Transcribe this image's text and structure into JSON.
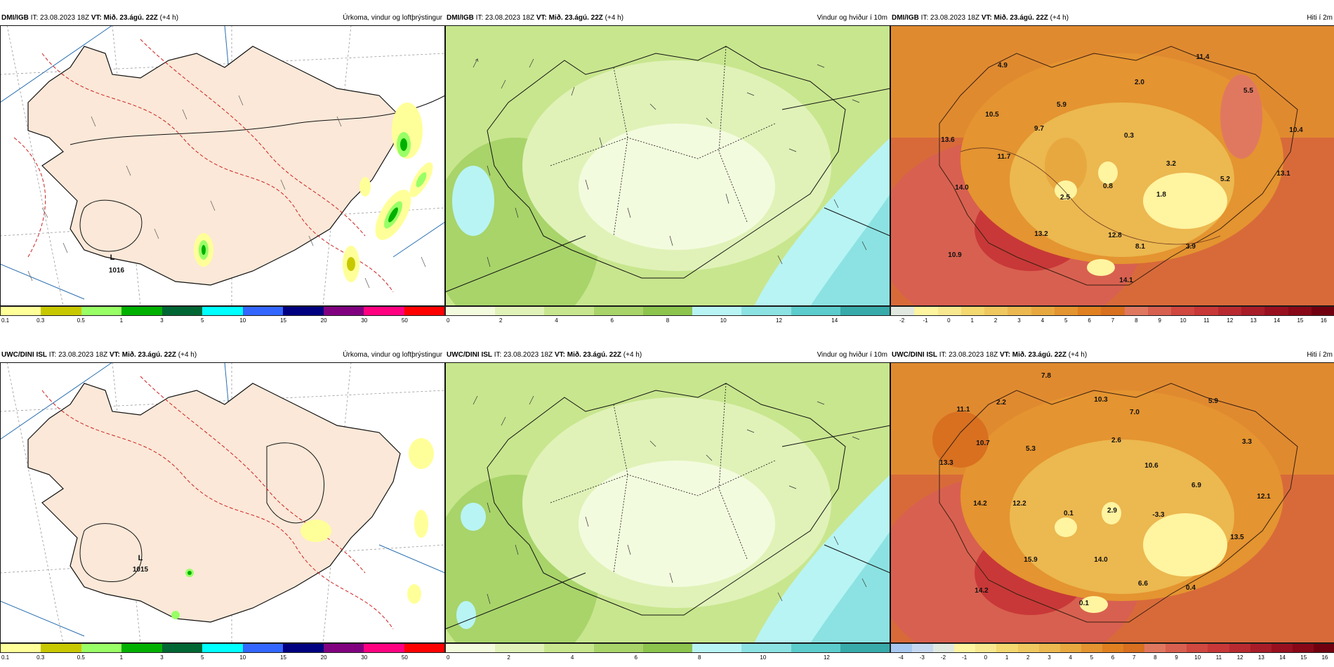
{
  "rows": [
    {
      "model": "DMI/IGB",
      "panels": [
        {
          "it": "IT: 23.08.2023 18Z",
          "vt_label": "VT:",
          "vt": "Mið. 23.ágú. 22Z",
          "lead": "(+4 h)",
          "title": "Úrkoma, vindur og loftþrýstingur",
          "scale": [
            "0.1",
            "0.3",
            "0.5",
            "1",
            "3",
            "5",
            "10",
            "15",
            "20",
            "30",
            "50"
          ],
          "pressure_label": "L",
          "pressure_value": "1016"
        },
        {
          "it": "IT: 23.08.2023 18Z",
          "vt_label": "VT:",
          "vt": "Mið. 23.ágú. 22Z",
          "lead": "(+4 h)",
          "title": "Vindur og hviður í 10m",
          "scale": [
            "0",
            "2",
            "4",
            "6",
            "8",
            "10",
            "12",
            "14"
          ]
        },
        {
          "it": "IT: 23.08.2023 18Z",
          "vt_label": "VT:",
          "vt": "Mið. 23.ágú. 22Z",
          "lead": "(+4 h)",
          "title": "Hiti í 2m",
          "scale": [
            "-2",
            "-1",
            "0",
            "1",
            "2",
            "3",
            "4",
            "5",
            "6",
            "7",
            "8",
            "9",
            "10",
            "11",
            "12",
            "13",
            "14",
            "15",
            "16"
          ],
          "temps": [
            "4.9",
            "11.4",
            "2.0",
            "5.5",
            "5.9",
            "10.5",
            "9.7",
            "0.3",
            "10.4",
            "13.6",
            "11.7",
            "3.2",
            "13.1",
            "14.0",
            "0.8",
            "5.2",
            "2.5",
            "1.8",
            "13.2",
            "12.8",
            "10.9",
            "8.1",
            "3.9",
            "14.1"
          ]
        }
      ]
    },
    {
      "model": "UWC/DINI ISL",
      "panels": [
        {
          "it": "IT: 23.08.2023 18Z",
          "vt_label": "VT:",
          "vt": "Mið. 23.ágú. 22Z",
          "lead": "(+4 h)",
          "title": "Úrkoma, vindur og loftþrýstingur",
          "scale": [
            "0.1",
            "0.3",
            "0.5",
            "1",
            "3",
            "5",
            "10",
            "15",
            "20",
            "30",
            "50"
          ],
          "pressure_label": "L",
          "pressure_value": "1015"
        },
        {
          "it": "IT: 23.08.2023 18Z",
          "vt_label": "VT:",
          "vt": "Mið. 23.ágú. 22Z",
          "lead": "(+4 h)",
          "title": "Vindur og hviður í 10m",
          "scale": [
            "0",
            "2",
            "4",
            "6",
            "8",
            "10",
            "12"
          ]
        },
        {
          "it": "IT: 23.08.2023 18Z",
          "vt_label": "VT:",
          "vt": "Mið. 23.ágú. 22Z",
          "lead": "(+4 h)",
          "title": "Hiti í 2m",
          "scale": [
            "-4",
            "-3",
            "-2",
            "-1",
            "0",
            "1",
            "2",
            "3",
            "4",
            "5",
            "6",
            "7",
            "8",
            "9",
            "10",
            "11",
            "12",
            "13",
            "14",
            "15",
            "16"
          ],
          "temps": [
            "7.8",
            "11.1",
            "2.2",
            "10.3",
            "7.0",
            "5.9",
            "10.7",
            "5.3",
            "2.6",
            "13.3",
            "10.6",
            "3.3",
            "6.9",
            "14.2",
            "12.2",
            "0.1",
            "2.9",
            "-3.3",
            "12.1",
            "13.5",
            "15.9",
            "14.0",
            "6.6",
            "0.4",
            "14.2",
            "0.1"
          ]
        }
      ]
    }
  ],
  "colors": {
    "precip": [
      "#ffff99",
      "#c8c800",
      "#99ff66",
      "#00b000",
      "#006633",
      "#00ffff",
      "#3366ff",
      "#000080",
      "#800080",
      "#ff0080",
      "#ff0000"
    ],
    "wind": [
      "#f3fbde",
      "#e0f2b8",
      "#c8e68e",
      "#a8d46a",
      "#8cc44e",
      "#b8f4f4",
      "#8ce2e2",
      "#5ccccc",
      "#38aaaa"
    ],
    "temp": [
      "#a7c8f0",
      "#c6d8f0",
      "#e0e8e0",
      "#fff4a0",
      "#f8e890",
      "#f4d870",
      "#f0c860",
      "#ecb850",
      "#e8a840",
      "#e49430",
      "#e08020",
      "#d87020",
      "#e07860",
      "#d86050",
      "#d04840",
      "#c83838",
      "#b82a30",
      "#a81c28",
      "#981020",
      "#880818",
      "#700010"
    ],
    "land_precip": "#fbe8d8",
    "sea_precip": "#ffffff",
    "temp_base": "#e07a3a"
  }
}
